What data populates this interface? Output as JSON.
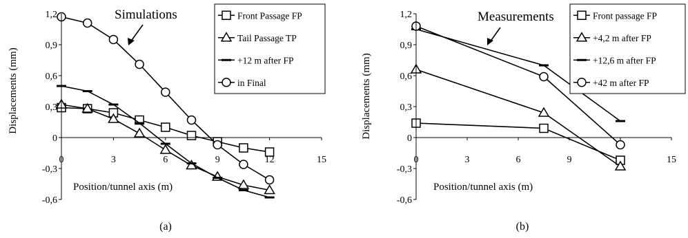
{
  "chart_data": [
    {
      "type": "line",
      "title": "Simulations",
      "xlabel": "Position/tunnel axis (m)",
      "ylabel": "Displacements (mm)",
      "caption": "(a)",
      "xlim": [
        0,
        15
      ],
      "ylim": [
        -0.6,
        1.2
      ],
      "xticks": [
        "0",
        "3",
        "6",
        "9",
        "12",
        "15"
      ],
      "yticks": [
        "1,2",
        "0,9",
        "0,6",
        "0,3",
        "0",
        "-0,3",
        "-0,6"
      ],
      "legend_position": "top-right",
      "series": [
        {
          "name": "Front Passage FP",
          "marker": "square",
          "x": [
            0,
            1.5,
            3,
            4.5,
            6,
            7.5,
            9,
            10.5,
            12
          ],
          "y": [
            0.29,
            0.28,
            0.24,
            0.17,
            0.1,
            0.02,
            -0.04,
            -0.1,
            -0.14
          ]
        },
        {
          "name": "Tail Passage TP",
          "marker": "triangle",
          "x": [
            0,
            1.5,
            3,
            4.5,
            6,
            7.5,
            9,
            10.5,
            12
          ],
          "y": [
            0.32,
            0.28,
            0.18,
            0.04,
            -0.12,
            -0.27,
            -0.38,
            -0.46,
            -0.51
          ]
        },
        {
          "name": "+12 m after FP",
          "marker": "dash",
          "x": [
            0,
            1.5,
            3,
            4.5,
            6,
            7.5,
            9,
            10.5,
            12
          ],
          "y": [
            0.5,
            0.45,
            0.32,
            0.14,
            -0.06,
            -0.25,
            -0.39,
            -0.51,
            -0.58
          ]
        },
        {
          "name": "in Final",
          "marker": "circle",
          "x": [
            0,
            1.5,
            3,
            4.5,
            6,
            7.5,
            9,
            10.5,
            12
          ],
          "y": [
            1.17,
            1.11,
            0.95,
            0.71,
            0.44,
            0.17,
            -0.07,
            -0.26,
            -0.41
          ]
        }
      ]
    },
    {
      "type": "line",
      "title": "Measurements",
      "xlabel": "Position/tunnel axis (m)",
      "ylabel": "Displacements (mm)",
      "caption": "(b)",
      "xlim": [
        0,
        15
      ],
      "ylim": [
        -0.6,
        1.2
      ],
      "xticks": [
        "0",
        "3",
        "6",
        "9",
        "12",
        "15"
      ],
      "yticks": [
        "1,2",
        "0,9",
        "0,6",
        "0,3",
        "0",
        "-0,3",
        "-0,6"
      ],
      "legend_position": "top-right",
      "series": [
        {
          "name": "Front passage FP",
          "marker": "square",
          "x": [
            0,
            7.5,
            12
          ],
          "y": [
            0.14,
            0.09,
            -0.22
          ]
        },
        {
          "name": "+4,2 m after FP",
          "marker": "triangle",
          "x": [
            0,
            7.5,
            12
          ],
          "y": [
            0.66,
            0.24,
            -0.28
          ]
        },
        {
          "name": "+12,6 m after FP",
          "marker": "dash",
          "x": [
            0,
            7.5,
            12
          ],
          "y": [
            1.05,
            0.7,
            0.16
          ]
        },
        {
          "name": "+42 m after FP",
          "marker": "circle",
          "x": [
            0,
            7.5,
            12
          ],
          "y": [
            1.08,
            0.59,
            -0.07
          ]
        }
      ]
    }
  ]
}
